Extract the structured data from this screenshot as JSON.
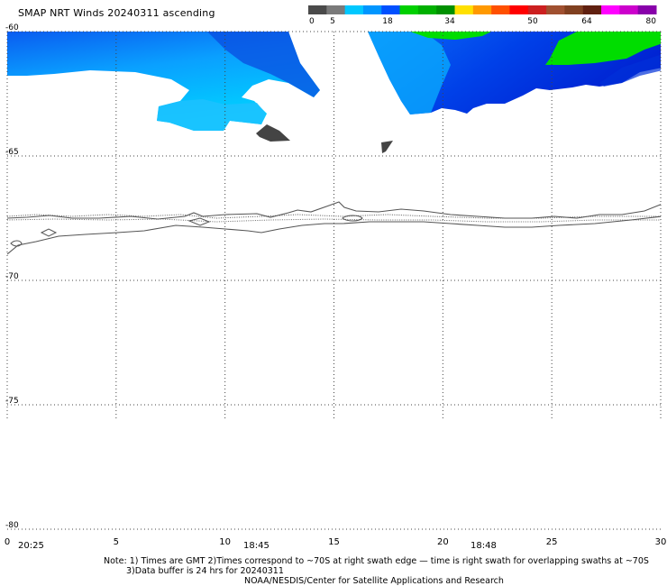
{
  "title": "SMAP NRT Winds 20240311 ascending",
  "colorbar": {
    "labels": [
      "0",
      "5",
      "18",
      "34",
      "50",
      "64",
      "80"
    ],
    "segments": [
      "#4a4a4a",
      "#7a7a7a",
      "#00c8ff",
      "#0096ff",
      "#0050ff",
      "#00d000",
      "#00b000",
      "#009000",
      "#ffe000",
      "#ff9900",
      "#ff5000",
      "#ff0000",
      "#cc2020",
      "#a05030",
      "#804020",
      "#602010",
      "#ff00ff",
      "#cc00cc",
      "#8800aa"
    ]
  },
  "axes": {
    "lat_labels": [
      "-60",
      "-65",
      "-70",
      "-75",
      "-80"
    ],
    "lon_labels": [
      "0",
      "5",
      "10",
      "15",
      "20",
      "25",
      "30"
    ],
    "time_labels": [
      "20:25",
      "18:45",
      "18:48"
    ]
  },
  "chart_data": {
    "type": "map",
    "lon_range": [
      0,
      30
    ],
    "lat_range": [
      -80,
      -60
    ],
    "grid": true,
    "lat_ticks": [
      -60,
      -65,
      -70,
      -75,
      -80
    ],
    "lon_ticks": [
      0,
      5,
      10,
      15,
      20,
      25,
      30
    ],
    "colors": {
      "wind_light": "#00c8ff",
      "wind_mid": "#0096ff",
      "wind_strong": "#0050ff",
      "wind_green": "#00dd00",
      "rain_flag": "#444444",
      "coastline": "#555555"
    }
  },
  "notes": {
    "line1": "Note: 1) Times are GMT 2)Times correspond to ~70S at right swath edge — time is right swath for overlapping swaths at ~70S",
    "line2": "3)Data buffer is 24 hrs for 20240311",
    "line3": "NOAA/NESDIS/Center for Satellite Applications and Research"
  }
}
